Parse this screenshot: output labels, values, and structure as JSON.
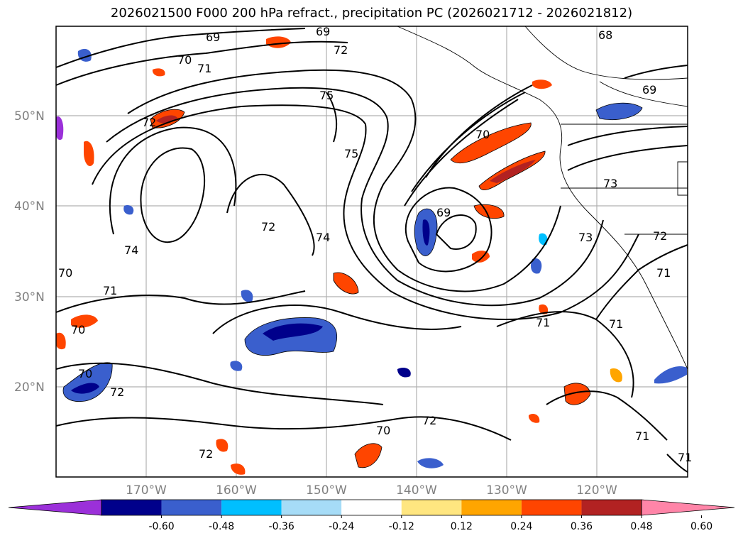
{
  "title": "2026021500 F000 200 hPa refract., precipitation PC (2026021712 - 2026021812)",
  "lon_labels": [
    "170°W",
    "160°W",
    "150°W",
    "140°W",
    "130°W",
    "120°W"
  ],
  "lat_labels": [
    "50°N",
    "40°N",
    "30°N",
    "20°N"
  ],
  "contour_labels": [
    "69",
    "69",
    "72",
    "70",
    "71",
    "72",
    "75",
    "68",
    "69",
    "70",
    "75",
    "72",
    "74",
    "74",
    "69",
    "73",
    "73",
    "72",
    "71",
    "71",
    "71",
    "70",
    "71",
    "70",
    "70",
    "72",
    "72",
    "70",
    "72",
    "71",
    "71"
  ],
  "colorbar": {
    "ticks": [
      "-0.60",
      "-0.48",
      "-0.36",
      "-0.24",
      "-0.12",
      "0.12",
      "0.24",
      "0.36",
      "0.48",
      "0.60"
    ],
    "colors": [
      "#9b30d9",
      "#00008b",
      "#3a5fcd",
      "#00bfff",
      "#a6dcf7",
      "#ffffff",
      "#ffe680",
      "#ffa500",
      "#ff4500",
      "#b22222",
      "#ff85a8"
    ]
  }
}
